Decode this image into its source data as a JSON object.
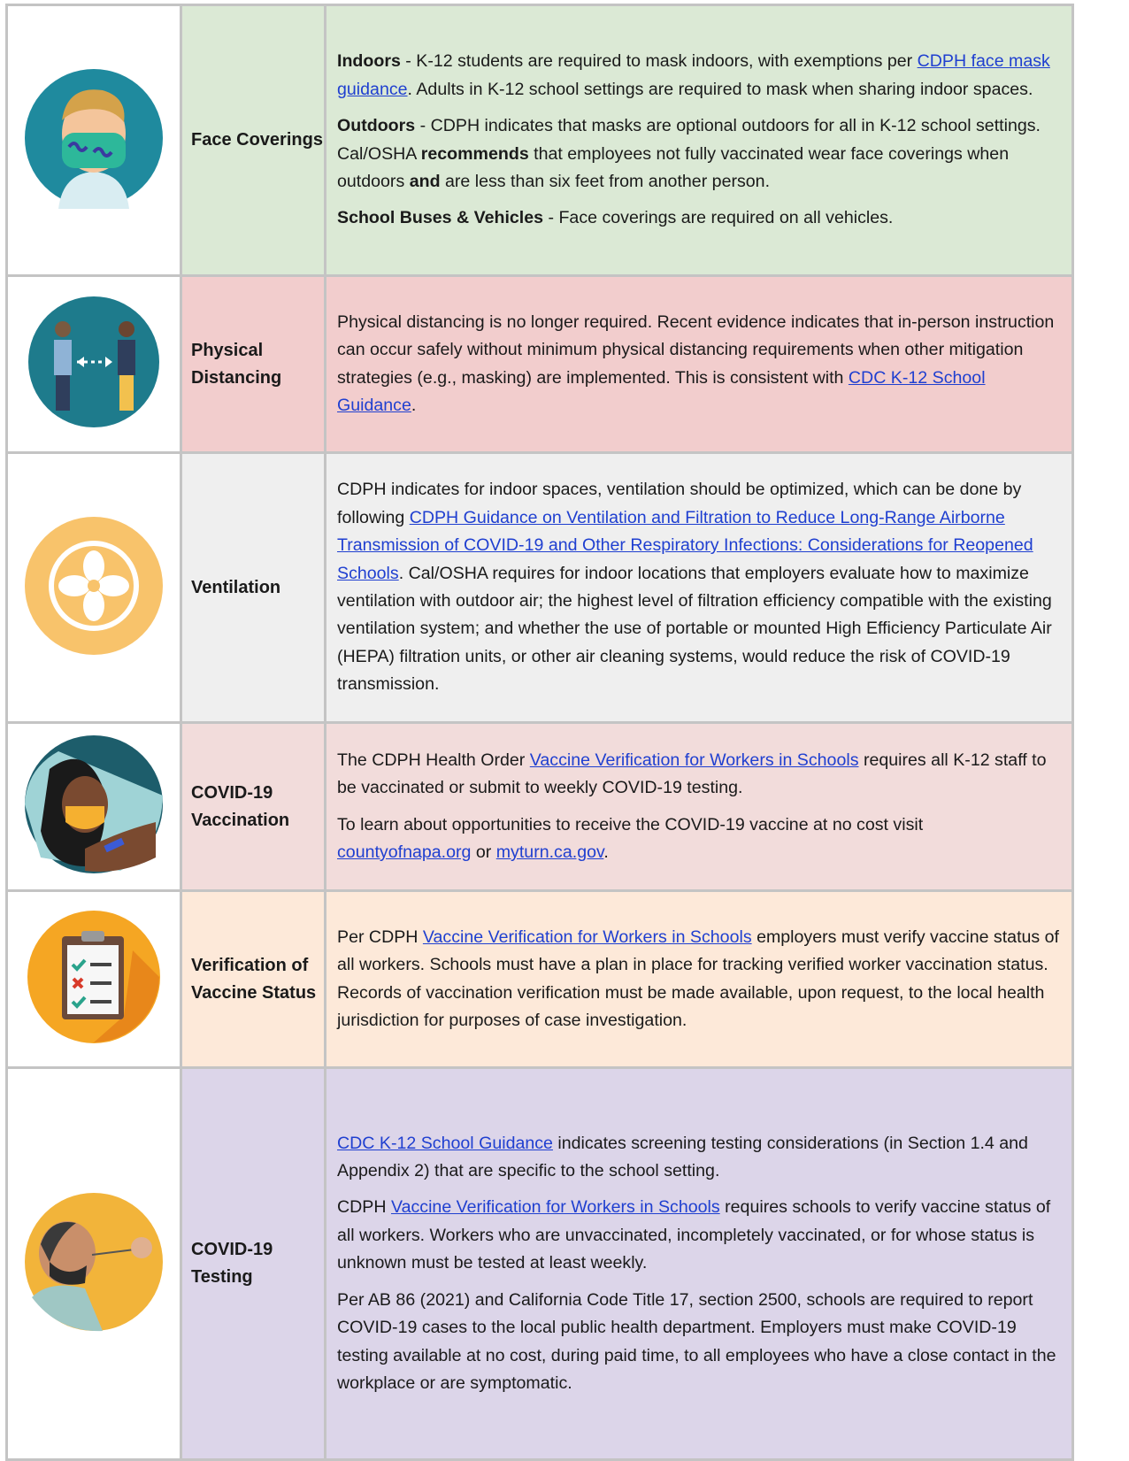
{
  "rows": [
    {
      "label": "Face Coverings",
      "paragraphs": [
        [
          {
            "text": "Indoors",
            "bold": true
          },
          {
            "text": " - K-12 students are required to mask indoors, with exemptions per "
          },
          {
            "text": "CDPH face mask guidance",
            "link": true
          },
          {
            "text": ".  Adults in K-12 school settings are required to mask when sharing indoor spaces."
          }
        ],
        [
          {
            "text": "Outdoors",
            "bold": true
          },
          {
            "text": " - CDPH indicates that masks are optional outdoors for all in K-12 school settings. Cal/OSHA "
          },
          {
            "text": "recommends",
            "bold": true
          },
          {
            "text": " that employees not fully vaccinated wear face coverings when outdoors "
          },
          {
            "text": "and",
            "bold": true
          },
          {
            "text": " are less than six feet from another person."
          }
        ],
        [
          {
            "text": "School Buses & Vehicles",
            "bold": true
          },
          {
            "text": " - Face coverings are required on all vehicles."
          }
        ]
      ]
    },
    {
      "label": "Physical Distancing",
      "paragraphs": [
        [
          {
            "text": "Physical distancing is no longer required. Recent evidence indicates that in-person instruction can occur safely without minimum physical distancing requirements when other mitigation strategies (e.g., masking) are implemented.  This is consistent with "
          },
          {
            "text": "CDC K-12 School Guidance",
            "link": true
          },
          {
            "text": "."
          }
        ]
      ]
    },
    {
      "label": "Ventilation",
      "paragraphs": [
        [
          {
            "text": "CDPH indicates for indoor spaces, ventilation should be optimized, which can be done by following "
          },
          {
            "text": "CDPH Guidance on Ventilation and Filtration to Reduce Long-Range Airborne Transmission of COVID-19 and Other Respiratory Infections: Considerations for Reopened Schools",
            "link": true
          },
          {
            "text": ". Cal/OSHA requires for indoor locations that employers evaluate how to maximize ventilation with outdoor air; the highest level of filtration efficiency compatible with the existing ventilation system; and whether the use of portable or mounted High Efficiency Particulate Air (HEPA) filtration units, or other air cleaning systems, would reduce the risk of COVID-19 transmission."
          }
        ]
      ]
    },
    {
      "label": "COVID-19 Vaccination",
      "paragraphs": [
        [
          {
            "text": "The CDPH Health Order "
          },
          {
            "text": "Vaccine Verification for Workers in Schools",
            "link": true
          },
          {
            "text": " requires all K-12 staff to be vaccinated or submit to weekly COVID-19 testing."
          }
        ],
        [
          {
            "text": "To learn about opportunities to receive the COVID-19 vaccine at no cost visit "
          },
          {
            "text": "countyofnapa.org",
            "link": true
          },
          {
            "text": " or "
          },
          {
            "text": "myturn.ca.gov",
            "link": true
          },
          {
            "text": "."
          }
        ]
      ]
    },
    {
      "label": "Verification of Vaccine Status",
      "paragraphs": [
        [
          {
            "text": "Per CDPH "
          },
          {
            "text": "Vaccine Verification for Workers in Schools",
            "link": true
          },
          {
            "text": " employers must verify vaccine status of all workers. Schools must have a plan in place for tracking verified worker vaccination status.  Records of vaccination verification must be made available, upon request, to the local health jurisdiction for purposes of case investigation."
          }
        ]
      ]
    },
    {
      "label": "COVID-19 Testing",
      "paragraphs": [
        [
          {
            "text": "CDC K-12 School Guidance",
            "link": true
          },
          {
            "text": " indicates screening testing considerations (in Section 1.4 and Appendix 2) that are specific to the school setting."
          }
        ],
        [
          {
            "text": "CDPH "
          },
          {
            "text": "Vaccine Verification for Workers in Schools",
            "link": true
          },
          {
            "text": " requires schools to verify vaccine status of all workers.  Workers who are unvaccinated, incompletely vaccinated, or for whose status is unknown must be tested at least weekly."
          }
        ],
        [
          {
            "text": "Per AB 86 (2021) and California Code Title 17, section 2500, schools are required to report COVID-19 cases to the local public health department. Employers must make COVID-19 testing available at no cost, during paid time, to all employees who have a close contact in the workplace or are symptomatic."
          }
        ]
      ]
    }
  ]
}
